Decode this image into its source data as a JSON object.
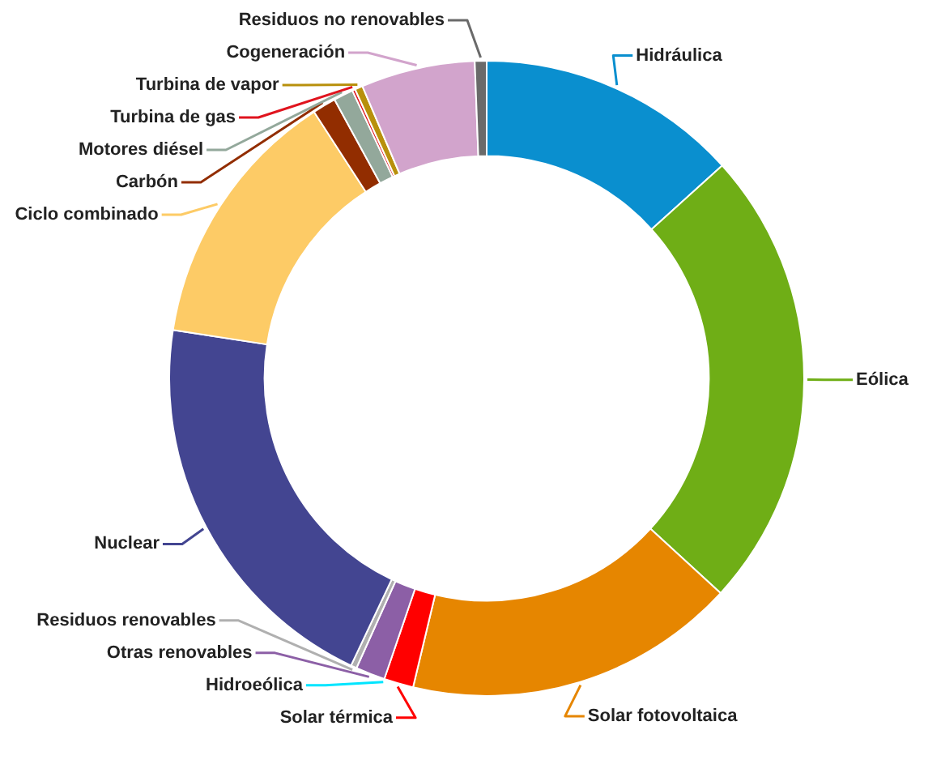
{
  "chart_data": {
    "type": "donut",
    "categories": [
      "Hidráulica",
      "Eólica",
      "Solar fotovoltaica",
      "Solar térmica",
      "Hidroeólica",
      "Otras renovables",
      "Residuos renovables",
      "Nuclear",
      "Ciclo combinado",
      "Carbón",
      "Motores diésel",
      "Turbina de gas",
      "Turbina de vapor",
      "Cogeneración",
      "Residuos no renovables"
    ],
    "values": [
      13.3,
      23.5,
      16.9,
      1.5,
      null,
      1.5,
      0.3,
      20.4,
      13.4,
      1.2,
      1.0,
      0.15,
      0.4,
      5.8,
      0.6
    ],
    "colors": [
      "#0a8fcf",
      "#6fae16",
      "#e68600",
      "#ff0000",
      "#00e5ff",
      "#8c5fa6",
      "#b0b0b0",
      "#434591",
      "#fdcb66",
      "#922d00",
      "#93a89b",
      "#e0141e",
      "#b8900c",
      "#d2a4cc",
      "#6a6a6a"
    ]
  }
}
